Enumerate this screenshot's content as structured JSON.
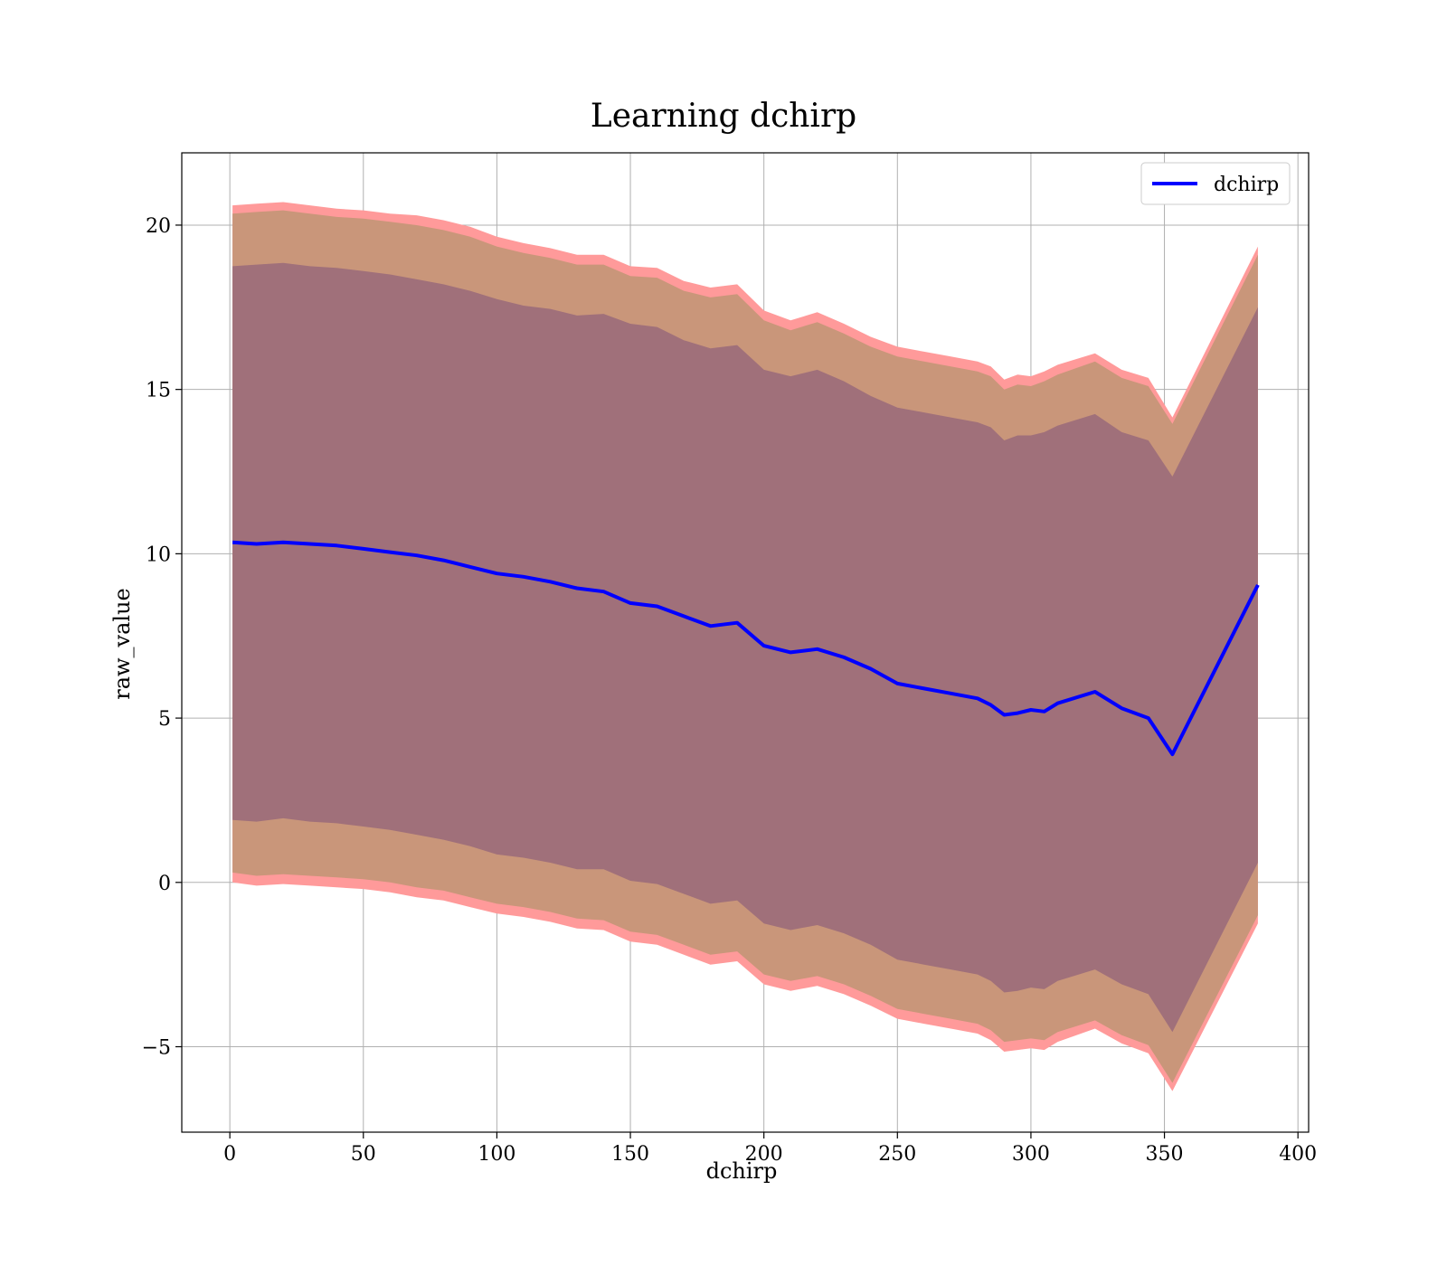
{
  "chart_data": {
    "type": "line",
    "title": "Learning dchirp",
    "xlabel": "dchirp",
    "ylabel": "raw_value",
    "xlim": [
      -18,
      404
    ],
    "ylim": [
      -7.6,
      22.2
    ],
    "xticks": [
      0,
      50,
      100,
      150,
      200,
      250,
      300,
      350,
      400
    ],
    "yticks": [
      -5,
      0,
      5,
      10,
      15,
      20
    ],
    "xtick_labels": [
      "0",
      "50",
      "100",
      "150",
      "200",
      "250",
      "300",
      "350",
      "400"
    ],
    "ytick_labels": [
      "−5",
      "0",
      "5",
      "10",
      "15",
      "20"
    ],
    "grid": true,
    "legend": {
      "position": "top-right",
      "entries": [
        "dchirp"
      ]
    },
    "colors": {
      "line": "#0000ff",
      "band_outer": "#ff9a9a",
      "band_middle": "#c9967a",
      "band_inner": "#a0707a"
    },
    "series": [
      {
        "name": "dchirp",
        "x": [
          1,
          10,
          20,
          30,
          40,
          50,
          60,
          70,
          80,
          90,
          100,
          110,
          120,
          130,
          140,
          150,
          160,
          170,
          180,
          190,
          200,
          210,
          220,
          230,
          240,
          250,
          260,
          270,
          280,
          285,
          290,
          295,
          300,
          305,
          310,
          324,
          334,
          344,
          353,
          385
        ],
        "y": [
          10.35,
          10.3,
          10.35,
          10.3,
          10.25,
          10.15,
          10.05,
          9.95,
          9.8,
          9.6,
          9.4,
          9.3,
          9.15,
          8.95,
          8.85,
          8.5,
          8.4,
          8.1,
          7.8,
          7.9,
          7.2,
          7.0,
          7.1,
          6.85,
          6.5,
          6.05,
          5.9,
          5.75,
          5.6,
          5.4,
          5.1,
          5.15,
          5.25,
          5.2,
          5.45,
          5.8,
          5.3,
          5.0,
          3.9,
          9.05
        ],
        "bands": {
          "outer_upper": [
            20.6,
            20.65,
            20.7,
            20.6,
            20.5,
            20.45,
            20.35,
            20.3,
            20.15,
            19.95,
            19.65,
            19.45,
            19.3,
            19.1,
            19.1,
            18.75,
            18.7,
            18.3,
            18.1,
            18.2,
            17.4,
            17.1,
            17.35,
            17.0,
            16.6,
            16.3,
            16.15,
            16.0,
            15.85,
            15.7,
            15.3,
            15.45,
            15.4,
            15.55,
            15.75,
            16.1,
            15.6,
            15.35,
            14.15,
            19.35
          ],
          "outer_lower": [
            0.0,
            -0.1,
            -0.05,
            -0.1,
            -0.15,
            -0.2,
            -0.3,
            -0.45,
            -0.55,
            -0.75,
            -0.95,
            -1.05,
            -1.2,
            -1.4,
            -1.45,
            -1.8,
            -1.9,
            -2.2,
            -2.5,
            -2.4,
            -3.1,
            -3.3,
            -3.15,
            -3.4,
            -3.75,
            -4.15,
            -4.3,
            -4.45,
            -4.6,
            -4.8,
            -5.15,
            -5.1,
            -5.05,
            -5.1,
            -4.85,
            -4.45,
            -4.9,
            -5.2,
            -6.35,
            -1.25
          ],
          "middle_upper": [
            20.35,
            20.4,
            20.45,
            20.35,
            20.25,
            20.2,
            20.1,
            20.0,
            19.85,
            19.65,
            19.35,
            19.15,
            19.0,
            18.8,
            18.8,
            18.45,
            18.4,
            18.0,
            17.8,
            17.9,
            17.1,
            16.8,
            17.05,
            16.7,
            16.3,
            16.0,
            15.85,
            15.7,
            15.55,
            15.4,
            15.0,
            15.15,
            15.1,
            15.25,
            15.45,
            15.85,
            15.35,
            15.1,
            13.95,
            19.1
          ],
          "middle_lower": [
            0.3,
            0.2,
            0.25,
            0.2,
            0.15,
            0.1,
            0.0,
            -0.15,
            -0.25,
            -0.45,
            -0.65,
            -0.75,
            -0.9,
            -1.1,
            -1.15,
            -1.5,
            -1.6,
            -1.9,
            -2.2,
            -2.1,
            -2.8,
            -3.0,
            -2.85,
            -3.1,
            -3.45,
            -3.85,
            -4.0,
            -4.15,
            -4.3,
            -4.5,
            -4.85,
            -4.8,
            -4.75,
            -4.8,
            -4.55,
            -4.2,
            -4.65,
            -4.95,
            -6.1,
            -1.0
          ],
          "inner_upper": [
            18.75,
            18.8,
            18.85,
            18.75,
            18.7,
            18.6,
            18.5,
            18.35,
            18.2,
            18.0,
            17.75,
            17.55,
            17.45,
            17.25,
            17.3,
            17.0,
            16.9,
            16.5,
            16.25,
            16.35,
            15.6,
            15.4,
            15.6,
            15.25,
            14.8,
            14.45,
            14.3,
            14.15,
            14.0,
            13.85,
            13.45,
            13.6,
            13.6,
            13.7,
            13.9,
            14.25,
            13.7,
            13.45,
            12.35,
            17.5
          ],
          "inner_lower": [
            1.9,
            1.85,
            1.95,
            1.85,
            1.8,
            1.7,
            1.6,
            1.45,
            1.3,
            1.1,
            0.85,
            0.75,
            0.6,
            0.4,
            0.4,
            0.05,
            -0.05,
            -0.35,
            -0.65,
            -0.55,
            -1.25,
            -1.45,
            -1.3,
            -1.55,
            -1.9,
            -2.35,
            -2.5,
            -2.65,
            -2.8,
            -3.0,
            -3.35,
            -3.3,
            -3.2,
            -3.25,
            -3.0,
            -2.65,
            -3.1,
            -3.4,
            -4.55,
            0.6
          ]
        }
      }
    ]
  }
}
